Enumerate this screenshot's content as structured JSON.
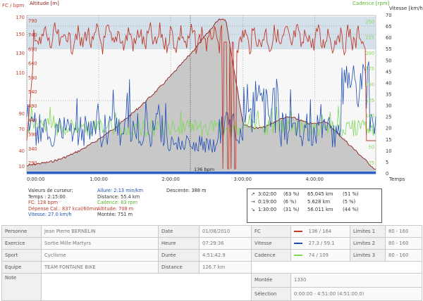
{
  "chart": {
    "left_axis_title": "FC / bpm",
    "altitude_title": "Altitude [m]",
    "speed_axis_title": "Vitesse [km/h]",
    "cadence_axis_title": "Cadence [rpm]",
    "x_axis_title": "Temps",
    "cursor_label": "136 bpm",
    "left_ticks": [
      "10",
      "40",
      "70",
      "90",
      "110",
      "130",
      "150",
      "170"
    ],
    "altitude_ticks": [
      "290",
      "340",
      "390",
      "440",
      "490",
      "540",
      "590",
      "640",
      "690",
      "740",
      "790"
    ],
    "speed_ticks": [
      "0",
      "5",
      "10",
      "15",
      "20",
      "25",
      "30",
      "35",
      "40",
      "45",
      "50",
      "55",
      "60",
      "65",
      "70"
    ],
    "cadence_ticks": [
      "25",
      "50",
      "75",
      "100",
      "125",
      "150",
      "175",
      "200",
      "225",
      "250"
    ],
    "time_ticks": [
      "0:00:00",
      "1:00:00",
      "2:00:00",
      "3:00:00",
      "4:00:00"
    ],
    "colors": {
      "hr": "#c0392b",
      "speed": "#1f4fb5",
      "cadence": "#7ed957",
      "altitude": "#8b1a1a",
      "fill": "#c8c8c8"
    }
  },
  "cursor": {
    "title": "Valeurs de curseur:",
    "temps": "Temps : 2:15:00",
    "fc": "FC: 128 bpm",
    "depense": "Dépense Cal.: 837 kcal/60min",
    "vitesse": "Vitesse: 27.0 km/h",
    "allure": "Allure: 2:13 min/km",
    "distance": "Distance: 55.4 km",
    "cadence": "Cadence: 83 rpm",
    "altitude": "Altitude: 708 m",
    "montee": "Montée: 751 m",
    "descente": "Descente: 388 m"
  },
  "summary": [
    {
      "arrow": "↗",
      "time": "3:02:00",
      "pct": "(63 %)",
      "dist": "65.045 km",
      "pct2": "(51 %)"
    },
    {
      "arrow": "→",
      "time": "0:19:00",
      "pct": "(6 %)",
      "dist": "5.628 km",
      "pct2": "(5 %)"
    },
    {
      "arrow": "↘",
      "time": "1:30:00",
      "pct": "(31 %)",
      "dist": "56.011 km",
      "pct2": "(44 %)"
    }
  ],
  "info": {
    "personne_k": "Personne",
    "personne_v": "Jean Pierre BERNELIN",
    "exercice_k": "Exercice",
    "exercice_v": "Sortie Mille Martyrs",
    "sport_k": "Sport",
    "sport_v": "Cyclisme",
    "equipe_k": "Equipe",
    "equipe_v": "TEAM FONTAINE BIKE",
    "note_k": "Note",
    "date_k": "Date",
    "date_v": "01/08/2010",
    "heure_k": "Heure",
    "heure_v": "07:29:36",
    "duree_k": "Durée",
    "duree_v": "4:51:42.9",
    "distance_k": "Distance",
    "distance_v": "126.7 km",
    "fc_k": "FC",
    "fc_v": "136 / 164",
    "vitesse_k": "Vitesse",
    "vitesse_v": "27.3 / 59.1",
    "cadence_k": "Cadence",
    "cadence_v": "74 / 109",
    "montee_k": "Montée",
    "montee_v": "1330",
    "selection_k": "Sélection",
    "selection_v": "0:00:00 - 4:51:00 (4:51:00.0)",
    "lim1_k": "Limites 1",
    "lim1_v": "80 - 160",
    "lim2_k": "Limites 2",
    "lim2_v": "80 - 160",
    "lim3_k": "Limites 3",
    "lim3_v": "80 - 160"
  }
}
